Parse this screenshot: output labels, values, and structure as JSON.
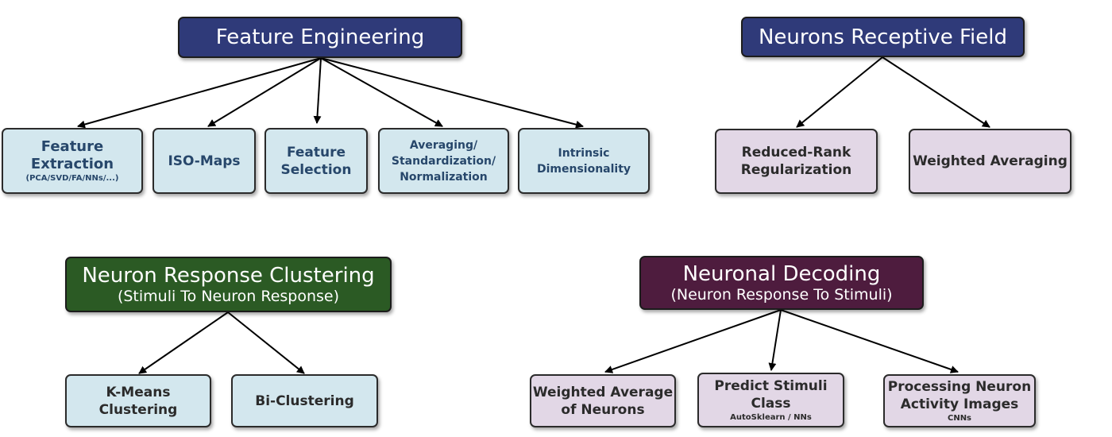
{
  "colors": {
    "fe_header": "#2f3a79",
    "nrf_header": "#2f3a79",
    "nrc_header": "#2b5a24",
    "nd_header": "#4e1c3e",
    "leaf_blue": "#d3e7ee",
    "leaf_lavender": "#e2d7e6",
    "arrow": "#000000"
  },
  "feature_engineering": {
    "title": "Feature Engineering",
    "children": [
      {
        "line1": "Feature",
        "line2": "Extraction",
        "sub": "(PCA/SVD/FA/NNs/...)"
      },
      {
        "line1": "ISO-Maps"
      },
      {
        "line1": "Feature",
        "line2": "Selection"
      },
      {
        "line1": "Averaging/",
        "line2": "Standardization/",
        "line3": "Normalization"
      },
      {
        "line1": "Intrinsic",
        "line2": "Dimensionality"
      }
    ]
  },
  "receptive_field": {
    "title": "Neurons Receptive Field",
    "children": [
      {
        "line1": "Reduced-Rank",
        "line2": "Regularization"
      },
      {
        "line1": "Weighted Averaging"
      }
    ]
  },
  "response_clustering": {
    "title": "Neuron Response Clustering",
    "subtitle": "(Stimuli To Neuron Response)",
    "children": [
      {
        "line1": "K-Means",
        "line2": "Clustering"
      },
      {
        "line1": "Bi-Clustering"
      }
    ]
  },
  "neuronal_decoding": {
    "title": "Neuronal Decoding",
    "subtitle": "(Neuron Response To Stimuli)",
    "children": [
      {
        "line1": "Weighted Average",
        "line2": "of Neurons"
      },
      {
        "line1": "Predict Stimuli",
        "line2": "Class",
        "sub": "AutoSklearn / NNs"
      },
      {
        "line1": "Processing Neuron",
        "line2": "Activity Images",
        "sub": "CNNs"
      }
    ]
  }
}
